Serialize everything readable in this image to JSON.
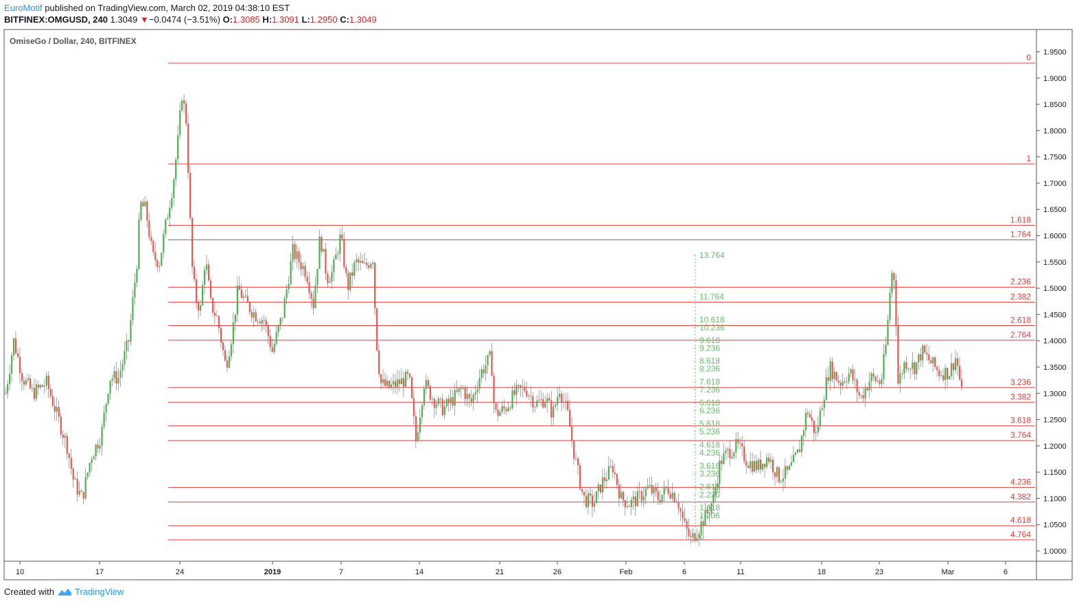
{
  "header": {
    "author": "EuroMotif",
    "published": "published on TradingView.com, March 02, 2019 04:38:10 EST",
    "symbol": "BITFINEX:OMGUSD, 240",
    "last": "1.3049",
    "change_arrow": "▼",
    "change": "−0.0474 (−3.51%)",
    "o_label": "O:",
    "o": "1.3085",
    "h_label": "H:",
    "h": "1.3091",
    "l_label": "L:",
    "l": "1.2950",
    "c_label": "C:",
    "c": "1.3049"
  },
  "footer": {
    "created_with": "Created with",
    "brand": "TradingView"
  },
  "colors": {
    "up": "#4caf50",
    "down": "#ef5350",
    "fib_red": "#e53935",
    "fib_green": "#66bb6a",
    "axis": "#131722"
  },
  "chart_data": {
    "type": "candlestick",
    "title": "OmiseGo / Dollar, 240, BITFINEX",
    "ylim": [
      0.985,
      1.97
    ],
    "y_ticks": [
      "1.9500",
      "1.9000",
      "1.8500",
      "1.8000",
      "1.7500",
      "1.7000",
      "1.6500",
      "1.6000",
      "1.5500",
      "1.5000",
      "1.4500",
      "1.4000",
      "1.3500",
      "1.3000",
      "1.2500",
      "1.2000",
      "1.1500",
      "1.1000",
      "1.0500",
      "1.0000"
    ],
    "x_ticks": [
      {
        "label": "10",
        "bold": false
      },
      {
        "label": "17",
        "bold": false
      },
      {
        "label": "24",
        "bold": false
      },
      {
        "label": "2019",
        "bold": true
      },
      {
        "label": "7",
        "bold": false
      },
      {
        "label": "14",
        "bold": false
      },
      {
        "label": "21",
        "bold": false
      },
      {
        "label": "26",
        "bold": false
      },
      {
        "label": "Feb",
        "bold": false
      },
      {
        "label": "6",
        "bold": false
      },
      {
        "label": "11",
        "bold": false
      },
      {
        "label": "18",
        "bold": false
      },
      {
        "label": "23",
        "bold": false
      },
      {
        "label": "Mar",
        "bold": false
      },
      {
        "label": "6",
        "bold": false
      }
    ],
    "series_close": [
      {
        "t": 0,
        "v": 1.3
      },
      {
        "t": 12,
        "v": 1.4
      },
      {
        "t": 25,
        "v": 1.33
      },
      {
        "t": 40,
        "v": 1.3
      },
      {
        "t": 60,
        "v": 1.32
      },
      {
        "t": 75,
        "v": 1.26
      },
      {
        "t": 90,
        "v": 1.2
      },
      {
        "t": 100,
        "v": 1.13
      },
      {
        "t": 112,
        "v": 1.1
      },
      {
        "t": 125,
        "v": 1.18
      },
      {
        "t": 140,
        "v": 1.22
      },
      {
        "t": 152,
        "v": 1.33
      },
      {
        "t": 165,
        "v": 1.33
      },
      {
        "t": 180,
        "v": 1.4
      },
      {
        "t": 192,
        "v": 1.55
      },
      {
        "t": 197,
        "v": 1.66
      },
      {
        "t": 205,
        "v": 1.65
      },
      {
        "t": 215,
        "v": 1.56
      },
      {
        "t": 225,
        "v": 1.55
      },
      {
        "t": 238,
        "v": 1.65
      },
      {
        "t": 245,
        "v": 1.7
      },
      {
        "t": 252,
        "v": 1.78
      },
      {
        "t": 258,
        "v": 1.87
      },
      {
        "t": 264,
        "v": 1.82
      },
      {
        "t": 268,
        "v": 1.7
      },
      {
        "t": 272,
        "v": 1.55
      },
      {
        "t": 278,
        "v": 1.48
      },
      {
        "t": 285,
        "v": 1.46
      },
      {
        "t": 292,
        "v": 1.56
      },
      {
        "t": 300,
        "v": 1.47
      },
      {
        "t": 310,
        "v": 1.44
      },
      {
        "t": 322,
        "v": 1.35
      },
      {
        "t": 332,
        "v": 1.42
      },
      {
        "t": 340,
        "v": 1.5
      },
      {
        "t": 352,
        "v": 1.47
      },
      {
        "t": 365,
        "v": 1.45
      },
      {
        "t": 378,
        "v": 1.44
      },
      {
        "t": 390,
        "v": 1.38
      },
      {
        "t": 405,
        "v": 1.45
      },
      {
        "t": 420,
        "v": 1.57
      },
      {
        "t": 440,
        "v": 1.53
      },
      {
        "t": 450,
        "v": 1.47
      },
      {
        "t": 460,
        "v": 1.6
      },
      {
        "t": 470,
        "v": 1.52
      },
      {
        "t": 478,
        "v": 1.53
      },
      {
        "t": 490,
        "v": 1.6
      },
      {
        "t": 500,
        "v": 1.5
      },
      {
        "t": 512,
        "v": 1.55
      },
      {
        "t": 525,
        "v": 1.54
      },
      {
        "t": 538,
        "v": 1.56
      },
      {
        "t": 541,
        "v": 1.42
      },
      {
        "t": 548,
        "v": 1.32
      },
      {
        "t": 560,
        "v": 1.31
      },
      {
        "t": 575,
        "v": 1.32
      },
      {
        "t": 590,
        "v": 1.33
      },
      {
        "t": 600,
        "v": 1.21
      },
      {
        "t": 612,
        "v": 1.32
      },
      {
        "t": 625,
        "v": 1.29
      },
      {
        "t": 640,
        "v": 1.27
      },
      {
        "t": 655,
        "v": 1.29
      },
      {
        "t": 668,
        "v": 1.31
      },
      {
        "t": 680,
        "v": 1.28
      },
      {
        "t": 695,
        "v": 1.34
      },
      {
        "t": 710,
        "v": 1.37
      },
      {
        "t": 715,
        "v": 1.26
      },
      {
        "t": 730,
        "v": 1.27
      },
      {
        "t": 745,
        "v": 1.3
      },
      {
        "t": 760,
        "v": 1.31
      },
      {
        "t": 775,
        "v": 1.28
      },
      {
        "t": 790,
        "v": 1.29
      },
      {
        "t": 800,
        "v": 1.26
      },
      {
        "t": 810,
        "v": 1.31
      },
      {
        "t": 822,
        "v": 1.26
      },
      {
        "t": 832,
        "v": 1.18
      },
      {
        "t": 845,
        "v": 1.1
      },
      {
        "t": 860,
        "v": 1.09
      },
      {
        "t": 872,
        "v": 1.13
      },
      {
        "t": 888,
        "v": 1.16
      },
      {
        "t": 900,
        "v": 1.1
      },
      {
        "t": 912,
        "v": 1.09
      },
      {
        "t": 925,
        "v": 1.1
      },
      {
        "t": 940,
        "v": 1.12
      },
      {
        "t": 955,
        "v": 1.1
      },
      {
        "t": 968,
        "v": 1.12
      },
      {
        "t": 982,
        "v": 1.1
      },
      {
        "t": 992,
        "v": 1.05
      },
      {
        "t": 1002,
        "v": 1.02
      },
      {
        "t": 1012,
        "v": 1.04
      },
      {
        "t": 1025,
        "v": 1.07
      },
      {
        "t": 1035,
        "v": 1.1
      },
      {
        "t": 1045,
        "v": 1.17
      },
      {
        "t": 1058,
        "v": 1.19
      },
      {
        "t": 1070,
        "v": 1.2
      },
      {
        "t": 1085,
        "v": 1.17
      },
      {
        "t": 1100,
        "v": 1.16
      },
      {
        "t": 1115,
        "v": 1.18
      },
      {
        "t": 1130,
        "v": 1.14
      },
      {
        "t": 1145,
        "v": 1.15
      },
      {
        "t": 1160,
        "v": 1.19
      },
      {
        "t": 1172,
        "v": 1.27
      },
      {
        "t": 1185,
        "v": 1.22
      },
      {
        "t": 1195,
        "v": 1.29
      },
      {
        "t": 1205,
        "v": 1.35
      },
      {
        "t": 1220,
        "v": 1.32
      },
      {
        "t": 1235,
        "v": 1.34
      },
      {
        "t": 1250,
        "v": 1.29
      },
      {
        "t": 1265,
        "v": 1.33
      },
      {
        "t": 1280,
        "v": 1.32
      },
      {
        "t": 1288,
        "v": 1.4
      },
      {
        "t": 1295,
        "v": 1.53
      },
      {
        "t": 1300,
        "v": 1.52
      },
      {
        "t": 1305,
        "v": 1.32
      },
      {
        "t": 1315,
        "v": 1.36
      },
      {
        "t": 1330,
        "v": 1.35
      },
      {
        "t": 1340,
        "v": 1.38
      },
      {
        "t": 1352,
        "v": 1.36
      },
      {
        "t": 1365,
        "v": 1.34
      },
      {
        "t": 1380,
        "v": 1.34
      },
      {
        "t": 1390,
        "v": 1.37
      },
      {
        "t": 1398,
        "v": 1.3
      }
    ],
    "fib_extension_red": [
      {
        "label": "0",
        "price": 1.9285
      },
      {
        "label": "1",
        "price": 1.7365
      },
      {
        "label": "1.618",
        "price": 1.6198
      },
      {
        "label": "1.764",
        "price": 1.592
      },
      {
        "label": "2.236",
        "price": 1.502
      },
      {
        "label": "2.382",
        "price": 1.4735
      },
      {
        "label": "2.618",
        "price": 1.429
      },
      {
        "label": "2.764",
        "price": 1.401
      },
      {
        "label": "3.236",
        "price": 1.311
      },
      {
        "label": "3.382",
        "price": 1.283
      },
      {
        "label": "3.618",
        "price": 1.238
      },
      {
        "label": "3.764",
        "price": 1.21
      },
      {
        "label": "4.236",
        "price": 1.121
      },
      {
        "label": "4.382",
        "price": 1.093
      },
      {
        "label": "4.618",
        "price": 1.048
      },
      {
        "label": "4.764",
        "price": 1.021
      }
    ],
    "fib_extension_green": [
      {
        "label": "13.764",
        "price": 1.563
      },
      {
        "label": "11.764",
        "price": 1.484
      },
      {
        "label": "10.618",
        "price": 1.44
      },
      {
        "label": "10.236",
        "price": 1.425
      },
      {
        "label": "9.618",
        "price": 1.401
      },
      {
        "label": "9.236",
        "price": 1.386
      },
      {
        "label": "8.618",
        "price": 1.362
      },
      {
        "label": "8.236",
        "price": 1.347
      },
      {
        "label": "7.618",
        "price": 1.322
      },
      {
        "label": "7.236",
        "price": 1.307
      },
      {
        "label": "6.618",
        "price": 1.282
      },
      {
        "label": "6.236",
        "price": 1.267
      },
      {
        "label": "5.618",
        "price": 1.242
      },
      {
        "label": "5.236",
        "price": 1.227
      },
      {
        "label": "4.618",
        "price": 1.202
      },
      {
        "label": "4.236",
        "price": 1.187
      },
      {
        "label": "3.618",
        "price": 1.162
      },
      {
        "label": "3.236",
        "price": 1.147
      },
      {
        "label": "2.618",
        "price": 1.122
      },
      {
        "label": "2.236",
        "price": 1.107
      },
      {
        "label": "1.618",
        "price": 1.082
      },
      {
        "label": "1.236",
        "price": 1.067
      },
      {
        "label": "0",
        "price": 1.026
      }
    ]
  }
}
